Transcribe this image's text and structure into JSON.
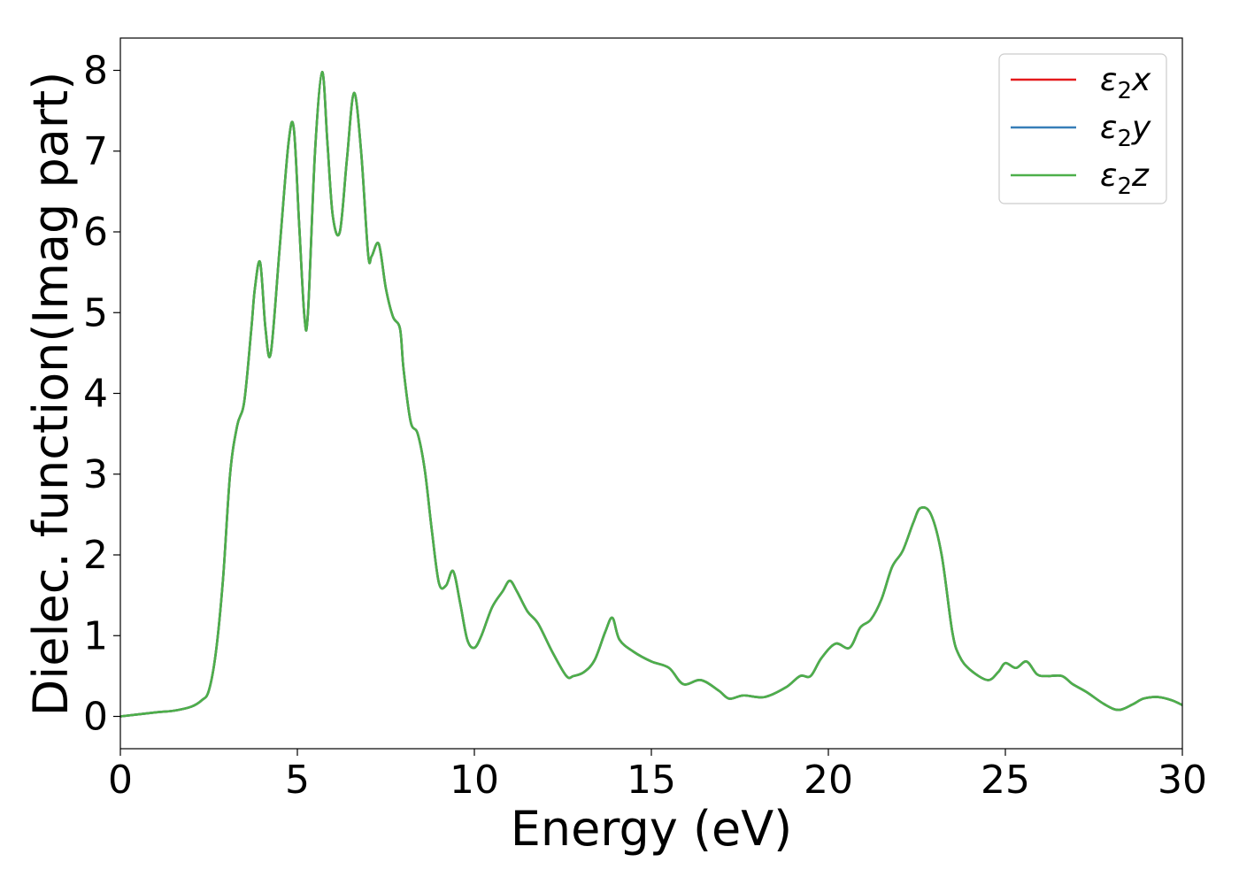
{
  "chart_data": {
    "type": "line",
    "title": "",
    "xlabel": "Energy (eV)",
    "ylabel": "Dielec. function(Imag part)",
    "xlim": [
      0,
      30
    ],
    "ylim": [
      -0.4,
      8.4
    ],
    "xticks": [
      "0",
      "5",
      "10",
      "15",
      "20",
      "25",
      "30"
    ],
    "yticks": [
      "0",
      "1",
      "2",
      "3",
      "4",
      "5",
      "6",
      "7",
      "8"
    ],
    "grid": false,
    "legend_position": "top-right",
    "series": [
      {
        "name": "ε2x",
        "label_base": "ε",
        "label_sub": "2",
        "label_suffix": "x",
        "color": "#e41a1c"
      },
      {
        "name": "ε2y",
        "label_base": "ε",
        "label_sub": "2",
        "label_suffix": "y",
        "color": "#377eb8"
      },
      {
        "name": "ε2z",
        "label_base": "ε",
        "label_sub": "2",
        "label_suffix": "z",
        "color": "#4daf4a"
      }
    ],
    "x": [
      0,
      1,
      1.5,
      2,
      2.3,
      2.5,
      2.7,
      2.9,
      3.1,
      3.3,
      3.5,
      3.7,
      3.8,
      3.95,
      4.1,
      4.25,
      4.5,
      4.75,
      4.9,
      5.05,
      5.2,
      5.3,
      5.5,
      5.7,
      5.85,
      6.0,
      6.2,
      6.4,
      6.6,
      6.8,
      7.0,
      7.1,
      7.3,
      7.5,
      7.7,
      7.9,
      8.0,
      8.2,
      8.4,
      8.6,
      8.8,
      9.0,
      9.2,
      9.4,
      9.6,
      9.8,
      10.0,
      10.2,
      10.5,
      10.8,
      11.0,
      11.2,
      11.5,
      11.8,
      12.2,
      12.6,
      12.8,
      13.1,
      13.4,
      13.7,
      13.9,
      14.1,
      14.5,
      15.0,
      15.5,
      15.9,
      16.4,
      16.9,
      17.2,
      17.6,
      18.2,
      18.8,
      19.2,
      19.5,
      19.8,
      20.2,
      20.6,
      20.9,
      21.2,
      21.5,
      21.8,
      22.1,
      22.4,
      22.6,
      22.9,
      23.2,
      23.5,
      23.7,
      24.0,
      24.5,
      24.8,
      25.0,
      25.3,
      25.6,
      25.9,
      26.2,
      26.6,
      26.9,
      27.3,
      27.8,
      28.2,
      28.6,
      28.9,
      29.3,
      29.7,
      30.0
    ],
    "values": [
      0.0,
      0.05,
      0.07,
      0.12,
      0.2,
      0.32,
      0.8,
      1.7,
      3.0,
      3.6,
      3.9,
      4.8,
      5.3,
      5.62,
      4.8,
      4.5,
      5.8,
      7.1,
      7.28,
      6.1,
      4.95,
      5.0,
      7.0,
      7.98,
      7.1,
      6.2,
      6.0,
      6.9,
      7.72,
      7.0,
      5.72,
      5.7,
      5.85,
      5.3,
      4.95,
      4.8,
      4.3,
      3.65,
      3.5,
      3.05,
      2.3,
      1.65,
      1.62,
      1.8,
      1.4,
      0.95,
      0.85,
      1.0,
      1.35,
      1.55,
      1.68,
      1.55,
      1.3,
      1.15,
      0.8,
      0.5,
      0.5,
      0.55,
      0.7,
      1.05,
      1.22,
      0.95,
      0.8,
      0.68,
      0.6,
      0.4,
      0.45,
      0.32,
      0.22,
      0.26,
      0.24,
      0.36,
      0.5,
      0.5,
      0.72,
      0.9,
      0.85,
      1.1,
      1.2,
      1.45,
      1.85,
      2.05,
      2.4,
      2.58,
      2.5,
      2.0,
      1.05,
      0.75,
      0.58,
      0.45,
      0.55,
      0.66,
      0.6,
      0.68,
      0.52,
      0.5,
      0.5,
      0.4,
      0.3,
      0.15,
      0.08,
      0.15,
      0.22,
      0.24,
      0.2,
      0.14
    ]
  }
}
